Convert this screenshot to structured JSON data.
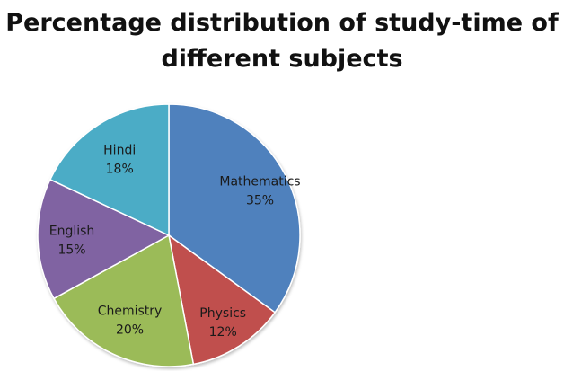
{
  "chart_data": {
    "type": "pie",
    "title_lines": [
      "Percentage distribution of study-time of",
      "different subjects"
    ],
    "categories": [
      "Mathematics",
      "Physics",
      "Chemistry",
      "English",
      "Hindi"
    ],
    "values": [
      35,
      12,
      20,
      15,
      18
    ],
    "value_labels": [
      "35%",
      "12%",
      "20%",
      "15%",
      "18%"
    ],
    "colors": [
      "#4F81BD",
      "#C0504D",
      "#9BBB59",
      "#8064A2",
      "#4BACC6"
    ],
    "start_angle": "12 o'clock",
    "direction": "clockwise",
    "legend": "none",
    "labels_position": "inside"
  }
}
